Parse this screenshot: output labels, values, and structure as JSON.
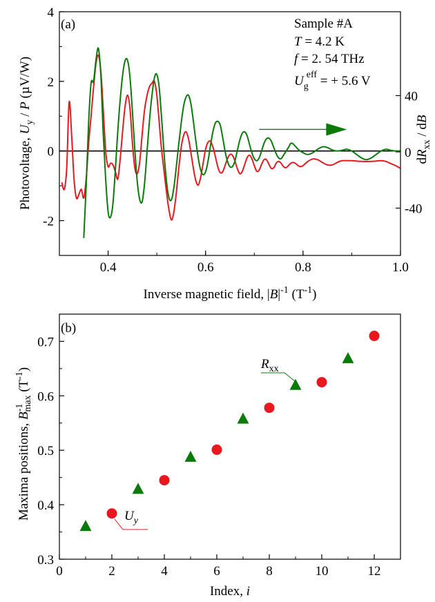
{
  "chart_data": [
    {
      "type": "line",
      "panel_label": "(a)",
      "xlabel": {
        "pre": "Inverse magnetic field, |",
        "B": "B",
        "post1": "|",
        "sup1": "-1",
        "post2": " (T",
        "sup2": "-1",
        "post3": ")"
      },
      "ylabel_left": {
        "pre": "Photovoltage, ",
        "U": "U",
        "sub": "y",
        "mid": " / ",
        "P": "P",
        "post": " (µV/W)"
      },
      "ylabel_right": {
        "pre": "d",
        "R": "R",
        "sub": "xx",
        "mid": " / d",
        "B": "B"
      },
      "xlim": [
        0.3,
        1.0
      ],
      "ylim_left": [
        -3,
        4
      ],
      "ylim_right": [
        -73.64,
        99.64
      ],
      "x_ticks": [
        0.4,
        0.6,
        0.8,
        1.0
      ],
      "x_tick_labels": [
        "0.4",
        "0.6",
        "0.8",
        "1.0"
      ],
      "y_left_ticks": [
        -2,
        0,
        2,
        4
      ],
      "y_left_tick_labels": [
        "-2",
        "0",
        "2",
        "4"
      ],
      "y_right_ticks": [
        -40,
        0,
        40
      ],
      "y_right_tick_labels": [
        "-40",
        "0",
        "40"
      ],
      "zero_line": true,
      "annotation": {
        "sample": "Sample #A",
        "T_sym": "T",
        "T_val": " = 4.2 K",
        "f_sym": "f",
        "f_val": " = 2. 54 THz",
        "U_sym": "U",
        "U_sub": "g",
        "U_sup": "eff",
        "U_val": " = + 5.6 V"
      },
      "series": [
        {
          "axis": "left",
          "color": "#e8191e",
          "points": [
            [
              0.305,
              -0.9
            ],
            [
              0.31,
              -1.1
            ],
            [
              0.315,
              -0.5
            ],
            [
              0.32,
              1.4
            ],
            [
              0.325,
              0.5
            ],
            [
              0.33,
              -0.8
            ],
            [
              0.335,
              -1.35
            ],
            [
              0.34,
              -1.25
            ],
            [
              0.345,
              -1.1
            ],
            [
              0.35,
              -1.35
            ],
            [
              0.355,
              -0.8
            ],
            [
              0.36,
              0.2
            ],
            [
              0.365,
              1.0
            ],
            [
              0.37,
              1.8
            ],
            [
              0.375,
              2.5
            ],
            [
              0.38,
              2.75
            ],
            [
              0.385,
              2.3
            ],
            [
              0.39,
              1.2
            ],
            [
              0.395,
              0.0
            ],
            [
              0.4,
              -0.45
            ],
            [
              0.405,
              -0.35
            ],
            [
              0.41,
              -0.4
            ],
            [
              0.415,
              -0.6
            ],
            [
              0.42,
              -0.8
            ],
            [
              0.425,
              -0.2
            ],
            [
              0.43,
              0.6
            ],
            [
              0.435,
              1.3
            ],
            [
              0.44,
              1.6
            ],
            [
              0.445,
              1.2
            ],
            [
              0.45,
              0.2
            ],
            [
              0.455,
              -0.5
            ],
            [
              0.46,
              -0.65
            ],
            [
              0.465,
              -0.3
            ],
            [
              0.47,
              0.5
            ],
            [
              0.475,
              1.2
            ],
            [
              0.48,
              1.6
            ],
            [
              0.485,
              1.85
            ],
            [
              0.49,
              1.95
            ],
            [
              0.495,
              2.0
            ],
            [
              0.5,
              1.6
            ],
            [
              0.505,
              0.8
            ],
            [
              0.51,
              0.0
            ],
            [
              0.515,
              -0.6
            ],
            [
              0.52,
              -1.2
            ],
            [
              0.525,
              -1.7
            ],
            [
              0.53,
              -1.98
            ],
            [
              0.535,
              -1.75
            ],
            [
              0.54,
              -1.2
            ],
            [
              0.545,
              -0.5
            ],
            [
              0.55,
              0.1
            ],
            [
              0.555,
              0.45
            ],
            [
              0.56,
              0.55
            ],
            [
              0.565,
              0.35
            ],
            [
              0.57,
              -0.05
            ],
            [
              0.575,
              -0.5
            ],
            [
              0.58,
              -0.85
            ],
            [
              0.585,
              -0.98
            ],
            [
              0.59,
              -0.75
            ],
            [
              0.595,
              -0.35
            ],
            [
              0.6,
              0.05
            ],
            [
              0.605,
              0.25
            ],
            [
              0.61,
              0.28
            ],
            [
              0.615,
              0.12
            ],
            [
              0.62,
              -0.15
            ],
            [
              0.625,
              -0.45
            ],
            [
              0.63,
              -0.62
            ],
            [
              0.635,
              -0.6
            ],
            [
              0.64,
              -0.42
            ],
            [
              0.645,
              -0.22
            ],
            [
              0.65,
              -0.1
            ],
            [
              0.655,
              -0.12
            ],
            [
              0.66,
              -0.28
            ],
            [
              0.665,
              -0.5
            ],
            [
              0.67,
              -0.65
            ],
            [
              0.675,
              -0.6
            ],
            [
              0.68,
              -0.4
            ],
            [
              0.685,
              -0.2
            ],
            [
              0.69,
              -0.12
            ],
            [
              0.695,
              -0.22
            ],
            [
              0.7,
              -0.42
            ],
            [
              0.705,
              -0.58
            ],
            [
              0.71,
              -0.55
            ],
            [
              0.715,
              -0.38
            ],
            [
              0.72,
              -0.25
            ],
            [
              0.725,
              -0.25
            ],
            [
              0.73,
              -0.38
            ],
            [
              0.735,
              -0.5
            ],
            [
              0.74,
              -0.48
            ],
            [
              0.745,
              -0.35
            ],
            [
              0.75,
              -0.3
            ],
            [
              0.755,
              -0.35
            ],
            [
              0.76,
              -0.45
            ],
            [
              0.765,
              -0.48
            ],
            [
              0.77,
              -0.42
            ],
            [
              0.775,
              -0.35
            ],
            [
              0.78,
              -0.33
            ],
            [
              0.785,
              -0.36
            ],
            [
              0.79,
              -0.42
            ],
            [
              0.795,
              -0.45
            ],
            [
              0.8,
              -0.42
            ],
            [
              0.81,
              -0.3
            ],
            [
              0.82,
              -0.23
            ],
            [
              0.83,
              -0.25
            ],
            [
              0.84,
              -0.33
            ],
            [
              0.85,
              -0.4
            ],
            [
              0.86,
              -0.4
            ],
            [
              0.87,
              -0.33
            ],
            [
              0.88,
              -0.28
            ],
            [
              0.9,
              -0.28
            ],
            [
              0.92,
              -0.3
            ],
            [
              0.94,
              -0.3
            ],
            [
              0.96,
              -0.28
            ],
            [
              0.97,
              -0.3
            ],
            [
              0.98,
              -0.36
            ],
            [
              0.99,
              -0.42
            ],
            [
              1.0,
              -0.5
            ]
          ]
        },
        {
          "axis": "right",
          "color": "#0b7a0b",
          "points": [
            [
              0.35,
              -2.5
            ],
            [
              0.355,
              -1.0
            ],
            [
              0.36,
              0.8
            ],
            [
              0.365,
              1.95
            ],
            [
              0.37,
              2.0
            ],
            [
              0.375,
              2.6
            ],
            [
              0.38,
              2.95
            ],
            [
              0.385,
              2.2
            ],
            [
              0.39,
              0.5
            ],
            [
              0.395,
              -0.8
            ],
            [
              0.4,
              -1.75
            ],
            [
              0.405,
              -1.9
            ],
            [
              0.41,
              -1.5
            ],
            [
              0.415,
              -0.5
            ],
            [
              0.42,
              0.6
            ],
            [
              0.425,
              1.5
            ],
            [
              0.43,
              2.2
            ],
            [
              0.435,
              2.6
            ],
            [
              0.44,
              2.6
            ],
            [
              0.445,
              2.1
            ],
            [
              0.45,
              1.1
            ],
            [
              0.455,
              0.0
            ],
            [
              0.46,
              -0.9
            ],
            [
              0.465,
              -1.4
            ],
            [
              0.47,
              -1.45
            ],
            [
              0.475,
              -0.9
            ],
            [
              0.48,
              0.0
            ],
            [
              0.485,
              0.9
            ],
            [
              0.49,
              1.6
            ],
            [
              0.495,
              2.1
            ],
            [
              0.5,
              2.2
            ],
            [
              0.505,
              1.8
            ],
            [
              0.51,
              0.9
            ],
            [
              0.515,
              -0.1
            ],
            [
              0.52,
              -0.9
            ],
            [
              0.525,
              -1.35
            ],
            [
              0.53,
              -1.4
            ],
            [
              0.535,
              -1.05
            ],
            [
              0.54,
              -0.45
            ],
            [
              0.545,
              0.2
            ],
            [
              0.55,
              0.8
            ],
            [
              0.555,
              1.3
            ],
            [
              0.56,
              1.55
            ],
            [
              0.565,
              1.6
            ],
            [
              0.57,
              1.35
            ],
            [
              0.575,
              0.85
            ],
            [
              0.58,
              0.3
            ],
            [
              0.585,
              -0.2
            ],
            [
              0.59,
              -0.55
            ],
            [
              0.595,
              -0.68
            ],
            [
              0.6,
              -0.6
            ],
            [
              0.605,
              -0.3
            ],
            [
              0.61,
              0.15
            ],
            [
              0.615,
              0.55
            ],
            [
              0.62,
              0.8
            ],
            [
              0.625,
              0.85
            ],
            [
              0.63,
              0.75
            ],
            [
              0.635,
              0.4
            ],
            [
              0.64,
              0.0
            ],
            [
              0.645,
              -0.3
            ],
            [
              0.65,
              -0.45
            ],
            [
              0.655,
              -0.45
            ],
            [
              0.66,
              -0.3
            ],
            [
              0.665,
              0.0
            ],
            [
              0.67,
              0.3
            ],
            [
              0.675,
              0.5
            ],
            [
              0.68,
              0.55
            ],
            [
              0.685,
              0.45
            ],
            [
              0.69,
              0.2
            ],
            [
              0.695,
              -0.05
            ],
            [
              0.7,
              -0.22
            ],
            [
              0.705,
              -0.28
            ],
            [
              0.71,
              -0.2
            ],
            [
              0.715,
              0.0
            ],
            [
              0.72,
              0.22
            ],
            [
              0.725,
              0.35
            ],
            [
              0.73,
              0.37
            ],
            [
              0.735,
              0.28
            ],
            [
              0.74,
              0.1
            ],
            [
              0.745,
              -0.08
            ],
            [
              0.75,
              -0.2
            ],
            [
              0.755,
              -0.22
            ],
            [
              0.76,
              -0.12
            ],
            [
              0.77,
              0.1
            ],
            [
              0.775,
              0.22
            ],
            [
              0.78,
              0.2
            ],
            [
              0.79,
              0.05
            ],
            [
              0.8,
              -0.05
            ],
            [
              0.81,
              -0.1
            ],
            [
              0.82,
              -0.05
            ],
            [
              0.83,
              0.05
            ],
            [
              0.84,
              0.12
            ],
            [
              0.85,
              0.1
            ],
            [
              0.86,
              0.03
            ],
            [
              0.87,
              0.0
            ],
            [
              0.88,
              0.02
            ],
            [
              0.89,
              0.05
            ],
            [
              0.9,
              0.0
            ],
            [
              0.91,
              -0.1
            ],
            [
              0.92,
              -0.2
            ],
            [
              0.93,
              -0.25
            ],
            [
              0.94,
              -0.2
            ],
            [
              0.95,
              -0.1
            ],
            [
              0.96,
              0.0
            ],
            [
              0.97,
              0.05
            ],
            [
              0.98,
              0.02
            ],
            [
              0.99,
              0.0
            ],
            [
              1.0,
              0.0
            ]
          ]
        }
      ],
      "arrow": {
        "from": [
          0.71,
          0.62
        ],
        "to": [
          0.89,
          0.62
        ],
        "color": "#0b7a0b"
      }
    },
    {
      "type": "scatter",
      "panel_label": "(b)",
      "xlabel": {
        "pre": "Index, ",
        "i": "i"
      },
      "ylabel": {
        "pre": "Maxima positions, ",
        "B": "B",
        "sup": "-1",
        "sub": "max",
        "post1": " (T",
        "sup2": "-1",
        "post2": ")"
      },
      "xlim": [
        0,
        13
      ],
      "ylim": [
        0.3,
        0.75
      ],
      "x_ticks": [
        0,
        2,
        4,
        6,
        8,
        10,
        12
      ],
      "x_tick_labels": [
        "0",
        "2",
        "4",
        "6",
        "8",
        "10",
        "12"
      ],
      "y_ticks": [
        0.3,
        0.4,
        0.5,
        0.6,
        0.7
      ],
      "y_tick_labels": [
        "0.3",
        "0.4",
        "0.5",
        "0.6",
        "0.7"
      ],
      "series": [
        {
          "label": {
            "main": "U",
            "sub": "y"
          },
          "marker": "circle",
          "color": "#e8191e",
          "x": [
            2,
            4,
            6,
            8,
            10,
            12
          ],
          "y": [
            0.384,
            0.445,
            0.501,
            0.578,
            0.625,
            0.71
          ]
        },
        {
          "label": {
            "main": "R",
            "sub": "xx"
          },
          "marker": "triangle",
          "color": "#0b7a0b",
          "x": [
            1,
            3,
            5,
            7,
            9,
            11
          ],
          "y": [
            0.36,
            0.428,
            0.487,
            0.557,
            0.619,
            0.668
          ]
        }
      ]
    }
  ]
}
